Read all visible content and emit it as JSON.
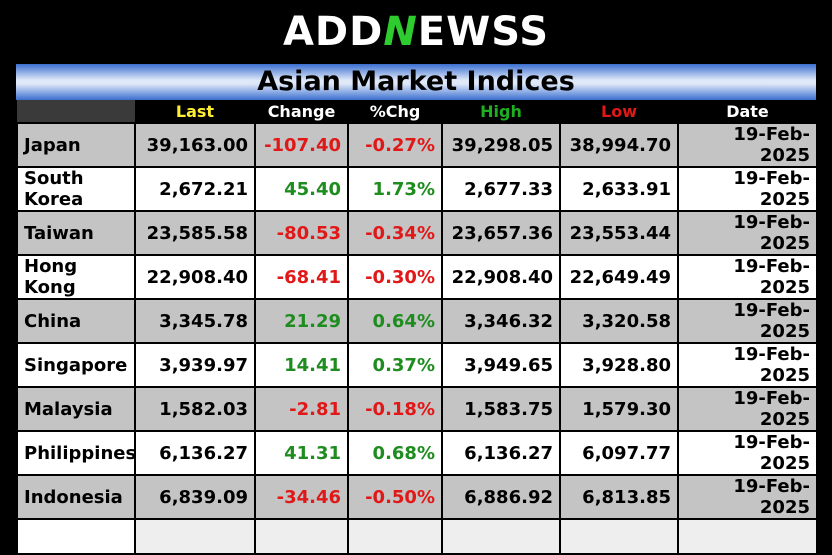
{
  "logo": {
    "part1": "ADD",
    "part2": "N",
    "part3": "EWSS"
  },
  "title": "Asian Market Indices",
  "headers": {
    "last": "Last",
    "change": "Change",
    "pct": "%Chg",
    "high": "High",
    "low": "Low",
    "date": "Date"
  },
  "colors": {
    "last": "#ffee33",
    "change": "#ffffff",
    "pct": "#ffffff",
    "high": "#1fae1f",
    "low": "#e01818",
    "date": "#ffffff",
    "positive": "#1e8c1e",
    "negative": "#e01818"
  },
  "rows": [
    {
      "name": "Japan",
      "last": "39,163.00",
      "change": "-107.40",
      "pct": "-0.27%",
      "high": "39,298.05",
      "low": "38,994.70",
      "date": "19-Feb-2025",
      "dir": "neg"
    },
    {
      "name": "South Korea",
      "last": "2,672.21",
      "change": "45.40",
      "pct": "1.73%",
      "high": "2,677.33",
      "low": "2,633.91",
      "date": "19-Feb-2025",
      "dir": "pos"
    },
    {
      "name": "Taiwan",
      "last": "23,585.58",
      "change": "-80.53",
      "pct": "-0.34%",
      "high": "23,657.36",
      "low": "23,553.44",
      "date": "19-Feb-2025",
      "dir": "neg"
    },
    {
      "name": "Hong Kong",
      "last": "22,908.40",
      "change": "-68.41",
      "pct": "-0.30%",
      "high": "22,908.40",
      "low": "22,649.49",
      "date": "19-Feb-2025",
      "dir": "neg"
    },
    {
      "name": "China",
      "last": "3,345.78",
      "change": "21.29",
      "pct": "0.64%",
      "high": "3,346.32",
      "low": "3,320.58",
      "date": "19-Feb-2025",
      "dir": "pos"
    },
    {
      "name": "Singapore",
      "last": "3,939.97",
      "change": "14.41",
      "pct": "0.37%",
      "high": "3,949.65",
      "low": "3,928.80",
      "date": "19-Feb-2025",
      "dir": "pos"
    },
    {
      "name": "Malaysia",
      "last": "1,582.03",
      "change": "-2.81",
      "pct": "-0.18%",
      "high": "1,583.75",
      "low": "1,579.30",
      "date": "19-Feb-2025",
      "dir": "neg"
    },
    {
      "name": "Philippines",
      "last": "6,136.27",
      "change": "41.31",
      "pct": "0.68%",
      "high": "6,136.27",
      "low": "6,097.77",
      "date": "19-Feb-2025",
      "dir": "pos"
    },
    {
      "name": "Indonesia",
      "last": "6,839.09",
      "change": "-34.46",
      "pct": "-0.50%",
      "high": "6,886.92",
      "low": "6,813.85",
      "date": "19-Feb-2025",
      "dir": "neg"
    }
  ]
}
